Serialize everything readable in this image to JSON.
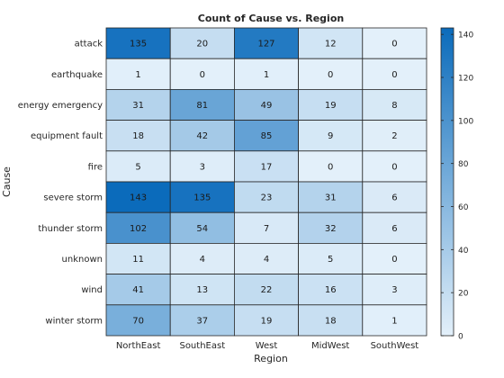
{
  "chart_data": {
    "type": "heatmap",
    "title": "Count of Cause vs. Region",
    "xlabel": "Region",
    "ylabel": "Cause",
    "x_categories": [
      "NorthEast",
      "SouthEast",
      "West",
      "MidWest",
      "SouthWest"
    ],
    "y_categories": [
      "attack",
      "earthquake",
      "energy emergency",
      "equipment fault",
      "fire",
      "severe storm",
      "thunder storm",
      "unknown",
      "wind",
      "winter storm"
    ],
    "values": [
      [
        135,
        20,
        127,
        12,
        0
      ],
      [
        1,
        0,
        1,
        0,
        0
      ],
      [
        31,
        81,
        49,
        19,
        8
      ],
      [
        18,
        42,
        85,
        9,
        2
      ],
      [
        5,
        3,
        17,
        0,
        0
      ],
      [
        143,
        135,
        23,
        31,
        6
      ],
      [
        102,
        54,
        7,
        32,
        6
      ],
      [
        11,
        4,
        4,
        5,
        0
      ],
      [
        41,
        13,
        22,
        16,
        3
      ],
      [
        70,
        37,
        19,
        18,
        1
      ]
    ],
    "colorbar": {
      "range": [
        0,
        143
      ],
      "ticks": [
        0,
        20,
        40,
        60,
        80,
        100,
        120,
        140
      ],
      "color_low": "#e3f0fa",
      "color_high": "#0b6bbb"
    }
  }
}
